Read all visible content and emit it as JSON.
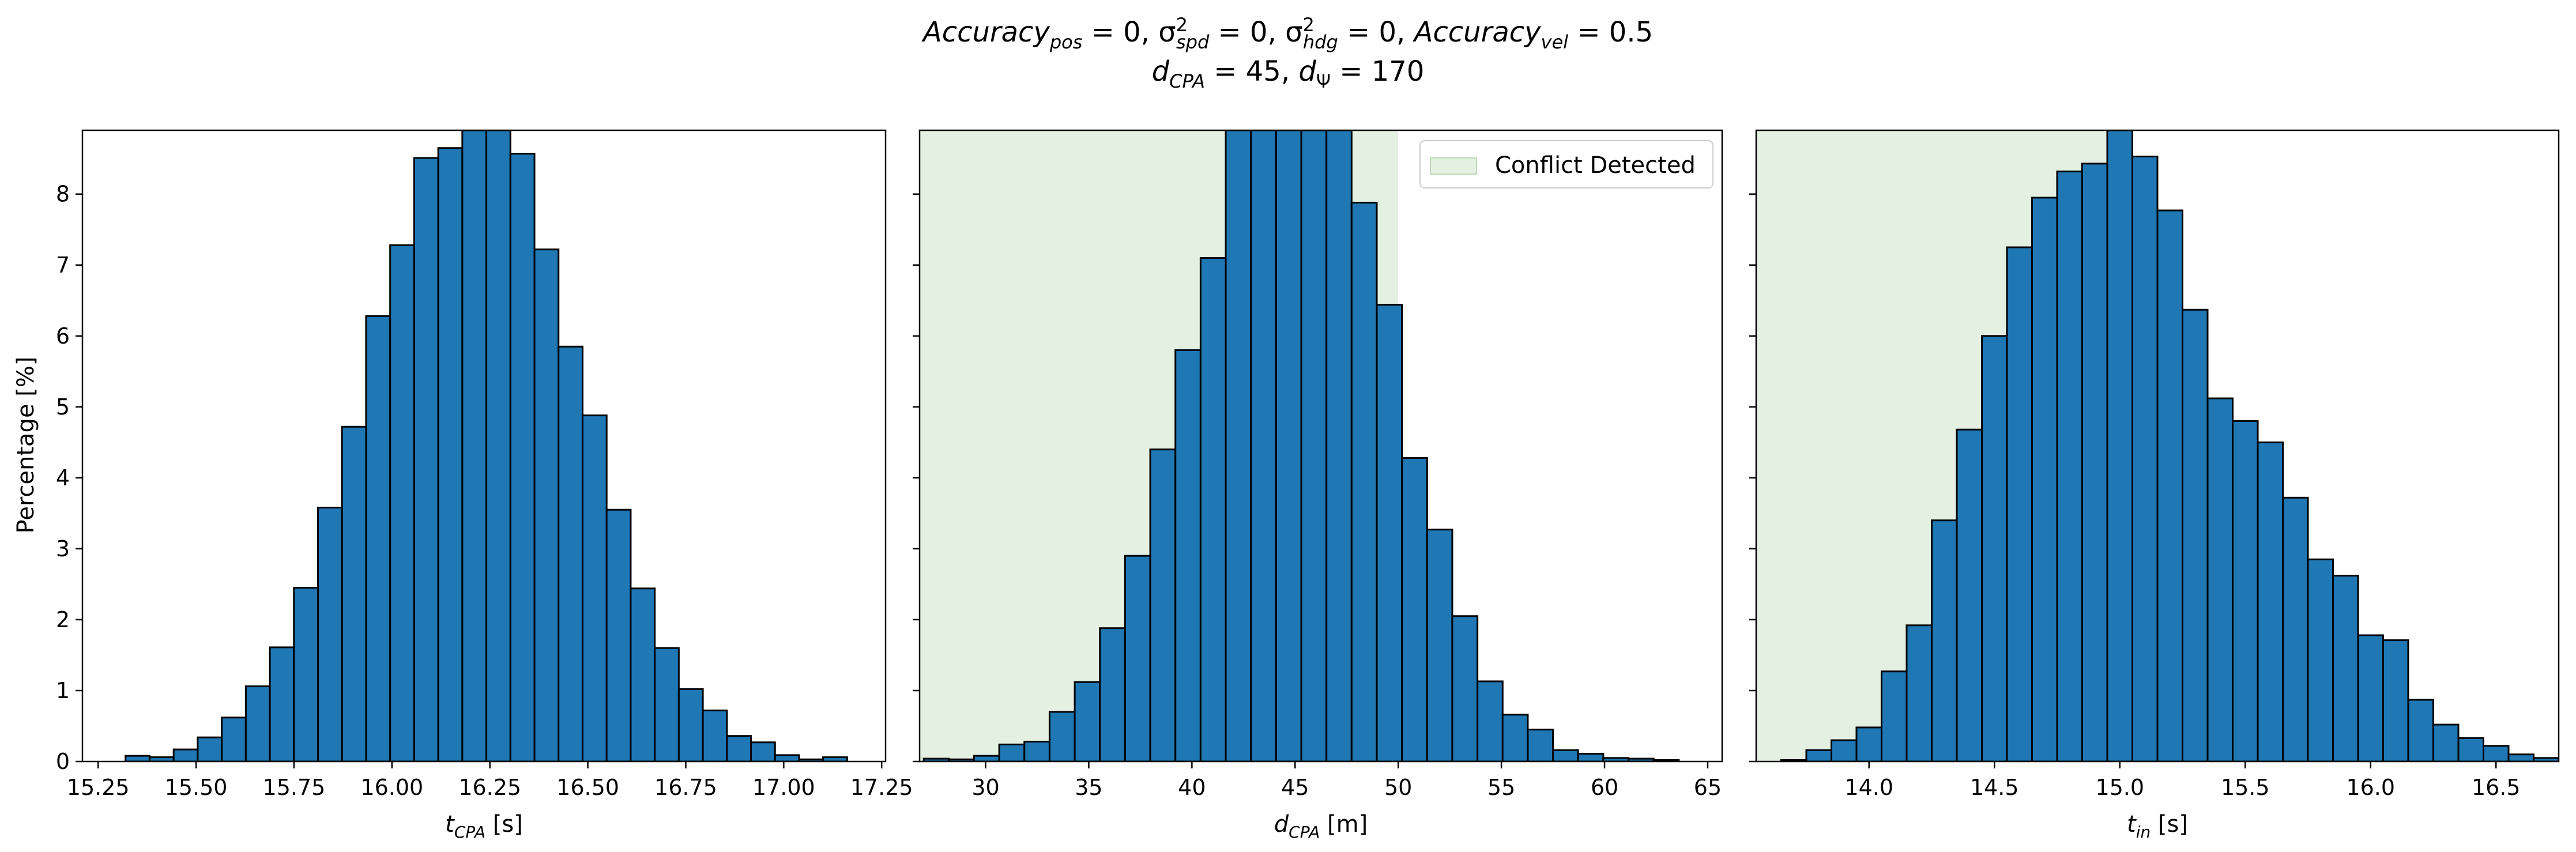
{
  "title": {
    "line1": "Accuracy_pos = 0, σ²_spd = 0, σ²_hdg = 0, Accuracy_vel = 0.5",
    "line2": "d_CPA = 45, d_Ψ = 170"
  },
  "colors": {
    "bar_fill": "#1f77b4",
    "bar_edge": "#000000",
    "conflict_region": "#e4f0e2",
    "conflict_legend_edge": "#b9d8b3"
  },
  "chart_data": [
    {
      "type": "bar",
      "ylabel": "Percentage [%]",
      "ylim": [
        0,
        8.9
      ],
      "yticks": [
        "0",
        "1",
        "2",
        "3",
        "4",
        "5",
        "6",
        "7",
        "8"
      ],
      "xlim": [
        15.21,
        17.26
      ],
      "xticks": [
        "15.25",
        "15.50",
        "15.75",
        "16.00",
        "16.25",
        "16.50",
        "16.75",
        "17.00",
        "17.25"
      ],
      "xtick_values": [
        15.25,
        15.5,
        15.75,
        16.0,
        16.25,
        16.5,
        16.75,
        17.0,
        17.25
      ],
      "xlabel_main": "t",
      "xlabel_sub": "CPA",
      "xlabel_unit": " [s]",
      "bin_start": 15.32,
      "bin_width": 0.0614,
      "values": [
        0.08,
        0.06,
        0.17,
        0.34,
        0.62,
        1.06,
        1.61,
        2.45,
        3.58,
        4.72,
        6.28,
        7.28,
        8.51,
        8.65,
        8.9,
        8.9,
        8.57,
        7.22,
        5.85,
        4.88,
        3.55,
        2.44,
        1.6,
        1.02,
        0.72,
        0.36,
        0.27,
        0.09,
        0.03,
        0.06
      ],
      "grid": false,
      "legend": null,
      "shaded_region": null
    },
    {
      "type": "bar",
      "ylabel": "",
      "ylim": [
        0,
        8.9
      ],
      "xlim": [
        26.8,
        65.7
      ],
      "xticks": [
        "30",
        "35",
        "40",
        "45",
        "50",
        "55",
        "60",
        "65"
      ],
      "xtick_values": [
        30,
        35,
        40,
        45,
        50,
        55,
        60,
        65
      ],
      "xlabel_main": "d",
      "xlabel_sub": "CPA",
      "xlabel_unit": " [m]",
      "bin_start": 27.0,
      "bin_width": 1.22,
      "values": [
        0.04,
        0.03,
        0.08,
        0.24,
        0.28,
        0.7,
        1.12,
        1.88,
        2.9,
        4.4,
        5.8,
        7.1,
        8.9,
        8.9,
        8.9,
        8.9,
        8.9,
        7.88,
        6.44,
        4.28,
        3.27,
        2.05,
        1.13,
        0.66,
        0.45,
        0.16,
        0.11,
        0.05,
        0.04,
        0.02
      ],
      "grid": false,
      "legend": {
        "label": "Conflict Detected",
        "position": "top-right"
      },
      "shaded_region": {
        "from": 26.8,
        "to": 50.0
      }
    },
    {
      "type": "bar",
      "ylabel": "",
      "ylim": [
        0,
        8.9
      ],
      "xlim": [
        13.55,
        16.75
      ],
      "xticks": [
        "14.0",
        "14.5",
        "15.0",
        "15.5",
        "16.0",
        "16.5"
      ],
      "xtick_values": [
        14.0,
        14.5,
        15.0,
        15.5,
        16.0,
        16.5
      ],
      "xlabel_main": "t",
      "xlabel_sub": "in",
      "xlabel_unit": " [s]",
      "bin_start": 13.65,
      "bin_width": 0.1,
      "values": [
        0.02,
        0.16,
        0.3,
        0.48,
        1.27,
        1.92,
        3.4,
        4.68,
        6.0,
        7.25,
        7.95,
        8.32,
        8.43,
        8.9,
        8.53,
        7.77,
        6.37,
        5.12,
        4.8,
        4.5,
        3.72,
        2.85,
        2.62,
        1.78,
        1.71,
        0.87,
        0.52,
        0.33,
        0.22,
        0.1,
        0.05,
        0.05
      ],
      "grid": false,
      "legend": null,
      "shaded_region": {
        "from": 13.55,
        "to": 15.0
      }
    }
  ]
}
